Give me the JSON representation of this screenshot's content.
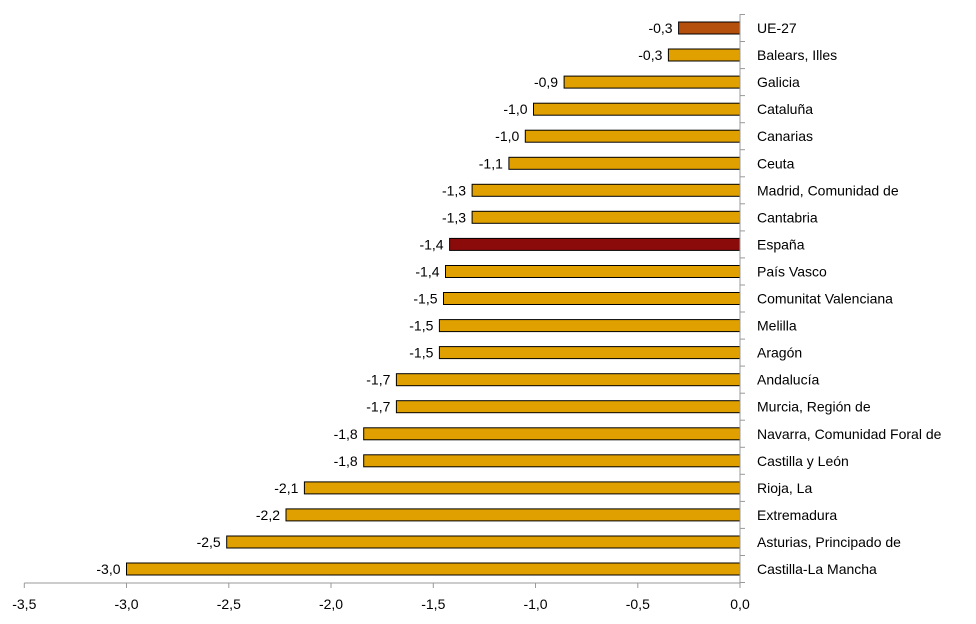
{
  "chart_data": {
    "type": "bar",
    "orientation": "horizontal",
    "categories": [
      "UE-27",
      "Balears, Illes",
      "Galicia",
      "Cataluña",
      "Canarias",
      "Ceuta",
      "Madrid, Comunidad de",
      "Cantabria",
      "España",
      "País Vasco",
      "Comunitat Valenciana",
      "Melilla",
      "Aragón",
      "Andalucía",
      "Murcia, Región de",
      "Navarra, Comunidad Foral de",
      "Castilla y León",
      "Rioja, La",
      "Extremadura",
      "Asturias, Principado de",
      "Castilla-La Mancha"
    ],
    "values": [
      -0.3,
      -0.35,
      -0.86,
      -1.01,
      -1.05,
      -1.13,
      -1.31,
      -1.31,
      -1.42,
      -1.44,
      -1.45,
      -1.47,
      -1.47,
      -1.68,
      -1.68,
      -1.84,
      -1.84,
      -2.13,
      -2.22,
      -2.51,
      -3.0
    ],
    "data_labels": [
      "-0,3",
      "-0,3",
      "-0,9",
      "-1,0",
      "-1,0",
      "-1,1",
      "-1,3",
      "-1,3",
      "-1,4",
      "-1,4",
      "-1,5",
      "-1,5",
      "-1,5",
      "-1,7",
      "-1,7",
      "-1,8",
      "-1,8",
      "-2,1",
      "-2,2",
      "-2,5",
      "-3,0"
    ],
    "bar_colors": [
      "#b5500c",
      "#e0a000",
      "#e0a000",
      "#e0a000",
      "#e0a000",
      "#e0a000",
      "#e0a000",
      "#e0a000",
      "#8b0a0a",
      "#e0a000",
      "#e0a000",
      "#e0a000",
      "#e0a000",
      "#e0a000",
      "#e0a000",
      "#e0a000",
      "#e0a000",
      "#e0a000",
      "#e0a000",
      "#e0a000",
      "#e0a000"
    ],
    "xlim": [
      -3.5,
      0.0
    ],
    "x_ticks": [
      -3.5,
      -3.0,
      -2.5,
      -2.0,
      -1.5,
      -1.0,
      -0.5,
      0.0
    ],
    "x_tick_labels": [
      "-3,5",
      "-3,0",
      "-2,5",
      "-2,0",
      "-1,5",
      "-1,0",
      "-0,5",
      "0,0"
    ],
    "title": "",
    "xlabel": "",
    "ylabel": "",
    "grid": false,
    "legend": "none",
    "axis_color": "#999999",
    "bar_outline": "#000000"
  }
}
